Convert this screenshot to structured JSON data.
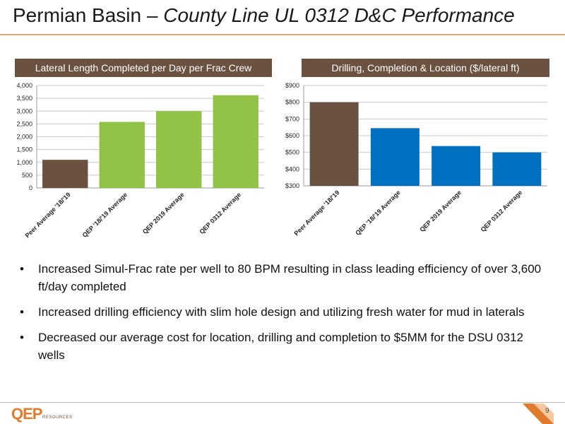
{
  "title": {
    "main": "Permian Basin – ",
    "italic": "County Line UL 0312 D&C Performance"
  },
  "colors": {
    "accent": "#d9a877",
    "header_bg": "#6b5240",
    "peer": "#6b5240",
    "green": "#92c246",
    "blue": "#0070c0",
    "logo": "#e07a2c"
  },
  "chart_data": [
    {
      "type": "bar",
      "title": "Lateral Length Completed per Day per Frac Crew",
      "categories": [
        "Peer Average '18/'19",
        "QEP '18/'19 Average",
        "QEP 2019 Average",
        "QEP 0312 Average"
      ],
      "values": [
        1100,
        2580,
        3000,
        3620
      ],
      "bar_colors": [
        "#6b5240",
        "#92c246",
        "#92c246",
        "#92c246"
      ],
      "ylim": [
        0,
        4000
      ],
      "yticks": [
        "0",
        "500",
        "1,000",
        "1,500",
        "2,000",
        "2,500",
        "3,000",
        "3,500",
        "4,000"
      ],
      "grid": true
    },
    {
      "type": "bar",
      "title": "Drilling, Completion & Location ($/lateral ft)",
      "categories": [
        "Peer Average '18/'19",
        "QEP '18/'19 Average",
        "QEP 2019 Average",
        "QEP 0312 Average"
      ],
      "values": [
        800,
        645,
        538,
        500
      ],
      "bar_colors": [
        "#6b5240",
        "#0070c0",
        "#0070c0",
        "#0070c0"
      ],
      "ylim": [
        300,
        900
      ],
      "yticks": [
        "$300",
        "$400",
        "$500",
        "$600",
        "$700",
        "$800",
        "$900"
      ],
      "grid": true
    }
  ],
  "bullets": [
    "Increased Simul-Frac rate per well to 80 BPM resulting in class leading efficiency of over 3,600 ft/day completed",
    "Increased drilling efficiency with slim hole design and utilizing fresh water for mud in laterals",
    "Decreased our average cost for location, drilling and completion to $5MM for the DSU 0312 wells"
  ],
  "bullet_symbol": "•",
  "logo": {
    "name": "QEP",
    "sub": "RESOURCES"
  },
  "page_number": "9"
}
